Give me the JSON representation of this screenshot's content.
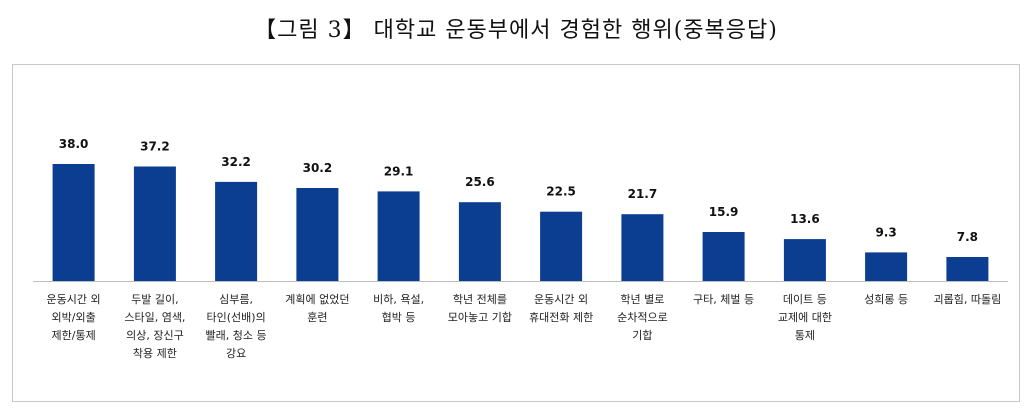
{
  "figure": {
    "title": "【그림 3】 대학교 운동부에서 경험한 행위(중복응답)"
  },
  "chart_data": {
    "type": "bar",
    "title": "【그림 3】 대학교 운동부에서 경험한 행위(중복응답)",
    "categories": [
      [
        "운동시간 외",
        "외박/외출",
        "제한/통제"
      ],
      [
        "두발 길이,",
        "스타일, 염색,",
        "의상, 장신구",
        "착용 제한"
      ],
      [
        "심부름,",
        "타인(선배)의",
        "빨래, 청소 등",
        "강요"
      ],
      [
        "계획에 없었던",
        "훈련"
      ],
      [
        "비하, 욕설,",
        "협박 등"
      ],
      [
        "학년 전체를",
        "모아놓고 기합"
      ],
      [
        "운동시간 외",
        "휴대전화 제한"
      ],
      [
        "학년 별로",
        "순차적으로",
        "기합"
      ],
      [
        "구타, 체벌 등"
      ],
      [
        "데이트 등",
        "교제에 대한",
        "통제"
      ],
      [
        "성희롱 등"
      ],
      [
        "괴롭힘, 따돌림"
      ]
    ],
    "values": [
      38.0,
      37.2,
      32.2,
      30.2,
      29.1,
      25.6,
      22.5,
      21.7,
      15.9,
      13.6,
      9.3,
      7.8
    ],
    "value_labels": [
      "38.0",
      "37.2",
      "32.2",
      "30.2",
      "29.1",
      "25.6",
      "22.5",
      "21.7",
      "15.9",
      "13.6",
      "9.3",
      "7.8"
    ],
    "ylim": [
      0,
      38.0
    ],
    "grid": false,
    "legend": "none",
    "bar_color": "#0b3d91"
  }
}
